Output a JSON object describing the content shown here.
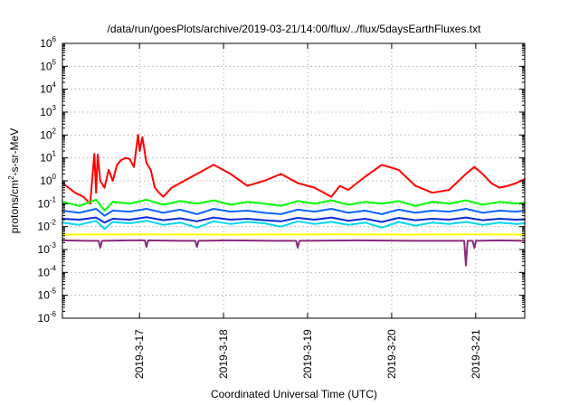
{
  "chart_data": {
    "type": "line",
    "title": "/data/run/goesPlots/archive/2019-03-21/14:00/flux/../flux/5daysEarthFluxes.txt",
    "xlabel": "Coordinated Universal Time (UTC)",
    "ylabel_parts": {
      "base": "protons/cm",
      "sup": "2",
      "rest": "-s-sr-MeV"
    },
    "y_scale": "log",
    "ylim": [
      1e-06,
      1000000.0
    ],
    "xlim": [
      0,
      5.5
    ],
    "x_ref": "2019-03-16 02:00 UTC",
    "grid": true,
    "y_ticks": [
      {
        "base": "10",
        "exp": "-6",
        "v": -6
      },
      {
        "base": "10",
        "exp": "-5",
        "v": -5
      },
      {
        "base": "10",
        "exp": "-4",
        "v": -4
      },
      {
        "base": "10",
        "exp": "-3",
        "v": -3
      },
      {
        "base": "10",
        "exp": "-2",
        "v": -2
      },
      {
        "base": "10",
        "exp": "-1",
        "v": -1
      },
      {
        "base": "10",
        "exp": "0",
        "v": 0
      },
      {
        "base": "10",
        "exp": "1",
        "v": 1
      },
      {
        "base": "10",
        "exp": "2",
        "v": 2
      },
      {
        "base": "10",
        "exp": "3",
        "v": 3
      },
      {
        "base": "10",
        "exp": "4",
        "v": 4
      },
      {
        "base": "10",
        "exp": "5",
        "v": 5
      },
      {
        "base": "10",
        "exp": "6",
        "v": 6
      }
    ],
    "x_ticks": [
      {
        "label": "2019-3-17",
        "x": 0.917
      },
      {
        "label": "2019-3-18",
        "x": 1.917
      },
      {
        "label": "2019-3-19",
        "x": 2.917
      },
      {
        "label": "2019-3-20",
        "x": 3.917
      },
      {
        "label": "2019-3-21",
        "x": 4.917
      }
    ],
    "series": [
      {
        "color": "#ff0000",
        "width": 2,
        "x": [
          0,
          0.15,
          0.25,
          0.33,
          0.38,
          0.4,
          0.42,
          0.45,
          0.5,
          0.55,
          0.6,
          0.65,
          0.7,
          0.75,
          0.8,
          0.85,
          0.9,
          0.92,
          0.95,
          0.97,
          1.0,
          1.05,
          1.1,
          1.15,
          1.2,
          1.3,
          1.4,
          1.6,
          1.8,
          2.0,
          2.2,
          2.4,
          2.6,
          2.8,
          3.0,
          3.2,
          3.3,
          3.4,
          3.6,
          3.8,
          4.0,
          4.2,
          4.4,
          4.6,
          4.8,
          4.9,
          5.0,
          5.1,
          5.2,
          5.3,
          5.4,
          5.5
        ],
        "y": [
          0.8,
          0.3,
          0.2,
          0.1,
          15,
          0.3,
          14,
          1.0,
          0.5,
          3,
          1.0,
          5,
          8,
          10,
          9,
          4,
          100,
          20,
          80,
          30,
          6,
          3,
          0.5,
          0.3,
          0.2,
          0.5,
          0.8,
          2,
          5,
          2,
          0.6,
          1.0,
          2,
          0.8,
          0.5,
          0.2,
          0.6,
          0.4,
          1.5,
          5,
          3,
          0.6,
          0.3,
          0.4,
          2,
          4,
          2,
          0.8,
          0.5,
          0.6,
          0.8,
          1.2
        ]
      },
      {
        "color": "#00ff00",
        "width": 2,
        "x": [
          0,
          0.2,
          0.4,
          0.5,
          0.6,
          0.8,
          1.0,
          1.2,
          1.4,
          1.6,
          1.8,
          2.0,
          2.2,
          2.4,
          2.6,
          2.8,
          3.0,
          3.2,
          3.4,
          3.6,
          3.8,
          4.0,
          4.2,
          4.4,
          4.6,
          4.8,
          5.0,
          5.2,
          5.4,
          5.5
        ],
        "y": [
          0.12,
          0.08,
          0.15,
          0.05,
          0.12,
          0.1,
          0.15,
          0.09,
          0.13,
          0.1,
          0.14,
          0.09,
          0.12,
          0.1,
          0.08,
          0.13,
          0.1,
          0.14,
          0.09,
          0.12,
          0.1,
          0.13,
          0.08,
          0.12,
          0.1,
          0.14,
          0.09,
          0.12,
          0.1,
          0.11
        ]
      },
      {
        "color": "#00d8e8",
        "width": 2,
        "x": [
          0,
          0.2,
          0.4,
          0.5,
          0.6,
          0.8,
          1.0,
          1.2,
          1.4,
          1.6,
          1.8,
          2.0,
          2.2,
          2.4,
          2.6,
          2.8,
          3.0,
          3.2,
          3.4,
          3.6,
          3.8,
          4.0,
          4.2,
          4.4,
          4.6,
          4.8,
          5.0,
          5.2,
          5.4,
          5.5
        ],
        "y": [
          0.015,
          0.012,
          0.018,
          0.008,
          0.016,
          0.014,
          0.018,
          0.012,
          0.015,
          0.009,
          0.017,
          0.013,
          0.016,
          0.014,
          0.01,
          0.017,
          0.013,
          0.016,
          0.012,
          0.015,
          0.009,
          0.016,
          0.011,
          0.015,
          0.013,
          0.016,
          0.012,
          0.015,
          0.013,
          0.014
        ]
      },
      {
        "color": "#0a64ff",
        "width": 2,
        "x": [
          0,
          0.2,
          0.4,
          0.5,
          0.6,
          0.8,
          1.0,
          1.2,
          1.4,
          1.6,
          1.8,
          2.0,
          2.2,
          2.4,
          2.6,
          2.8,
          3.0,
          3.2,
          3.4,
          3.6,
          3.8,
          4.0,
          4.2,
          4.4,
          4.6,
          4.8,
          5.0,
          5.2,
          5.4,
          5.5
        ],
        "y": [
          0.05,
          0.04,
          0.06,
          0.03,
          0.05,
          0.045,
          0.06,
          0.04,
          0.055,
          0.035,
          0.06,
          0.045,
          0.05,
          0.04,
          0.035,
          0.055,
          0.045,
          0.06,
          0.04,
          0.05,
          0.035,
          0.055,
          0.04,
          0.05,
          0.045,
          0.06,
          0.04,
          0.05,
          0.045,
          0.05
        ]
      },
      {
        "color": "#0a2ad8",
        "width": 2,
        "x": [
          0,
          0.2,
          0.4,
          0.5,
          0.6,
          0.8,
          1.0,
          1.2,
          1.4,
          1.6,
          1.8,
          2.0,
          2.2,
          2.4,
          2.6,
          2.8,
          3.0,
          3.2,
          3.4,
          3.6,
          3.8,
          4.0,
          4.2,
          4.4,
          4.6,
          4.8,
          5.0,
          5.2,
          5.4,
          5.5
        ],
        "y": [
          0.022,
          0.02,
          0.025,
          0.015,
          0.022,
          0.02,
          0.026,
          0.019,
          0.023,
          0.017,
          0.025,
          0.02,
          0.022,
          0.019,
          0.017,
          0.024,
          0.02,
          0.025,
          0.018,
          0.022,
          0.016,
          0.024,
          0.019,
          0.022,
          0.02,
          0.025,
          0.019,
          0.022,
          0.02,
          0.021
        ]
      },
      {
        "color": "#ffff00",
        "width": 2,
        "x": [
          0,
          1.0,
          2.0,
          3.0,
          4.0,
          5.0,
          5.5
        ],
        "y": [
          0.0045,
          0.0046,
          0.0045,
          0.0046,
          0.0045,
          0.0046,
          0.0045
        ]
      },
      {
        "color": "#8b2a7a",
        "width": 2,
        "x": [
          0,
          0.3,
          0.43,
          0.45,
          0.47,
          0.8,
          0.98,
          1.0,
          1.02,
          1.4,
          1.58,
          1.6,
          1.62,
          2.0,
          2.5,
          2.78,
          2.8,
          2.82,
          3.5,
          4.2,
          4.78,
          4.8,
          4.82,
          4.88,
          4.9,
          4.92,
          5.2,
          5.5
        ],
        "y": [
          0.0025,
          0.0024,
          0.0024,
          0.0012,
          0.0024,
          0.0025,
          0.0025,
          0.0013,
          0.0025,
          0.0024,
          0.0024,
          0.0013,
          0.0024,
          0.0025,
          0.0024,
          0.0024,
          0.0012,
          0.0024,
          0.0025,
          0.0024,
          0.0024,
          0.0002,
          0.0024,
          0.0024,
          0.0012,
          0.0024,
          0.0025,
          0.0024
        ]
      }
    ]
  }
}
